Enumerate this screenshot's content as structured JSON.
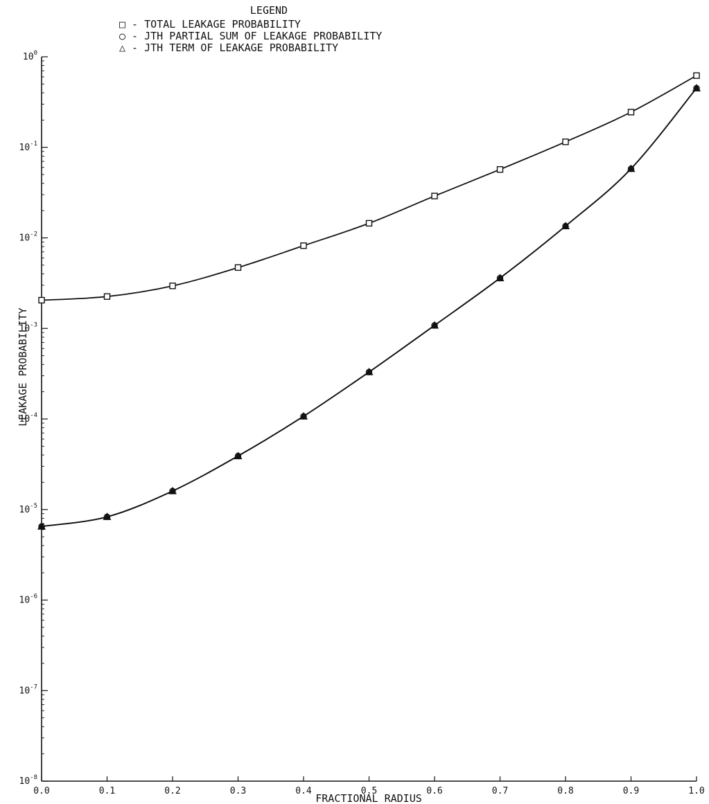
{
  "chart_data": {
    "type": "line",
    "legend": {
      "title": "LEGEND",
      "placement": "top-center",
      "entries": [
        {
          "marker": "□",
          "sep": "-",
          "label": "TOTAL LEAKAGE PROBABILITY"
        },
        {
          "marker": "○",
          "sep": "-",
          "label": "JTH PARTIAL SUM OF LEAKAGE PROBABILITY"
        },
        {
          "marker": "△",
          "sep": "-",
          "label": "JTH TERM OF LEAKAGE PROBABILITY"
        }
      ]
    },
    "xlabel": "FRACTIONAL RADIUS",
    "ylabel": "LEAKAGE PROBABILITY",
    "xlim": [
      0.0,
      1.0
    ],
    "ylim": [
      1e-08,
      1
    ],
    "yscale": "log",
    "grid": false,
    "x_ticks": [
      "0.0",
      "0.1",
      "0.2",
      "0.3",
      "0.4",
      "0.5",
      "0.6",
      "0.7",
      "0.8",
      "0.9",
      "1.0"
    ],
    "y_ticks": [
      {
        "base": "10",
        "exp": "0"
      },
      {
        "base": "10",
        "exp": "-1"
      },
      {
        "base": "10",
        "exp": "-2"
      },
      {
        "base": "10",
        "exp": "-3"
      },
      {
        "base": "10",
        "exp": "-4"
      },
      {
        "base": "10",
        "exp": "-5"
      },
      {
        "base": "10",
        "exp": "-6"
      },
      {
        "base": "10",
        "exp": "-7"
      },
      {
        "base": "10",
        "exp": "-8"
      }
    ],
    "x": [
      0.0,
      0.1,
      0.2,
      0.3,
      0.4,
      0.5,
      0.6,
      0.7,
      0.8,
      0.9,
      1.0
    ],
    "series": [
      {
        "name": "TOTAL LEAKAGE PROBABILITY",
        "marker": "square",
        "values": [
          0.00205,
          0.00225,
          0.00295,
          0.0047,
          0.0082,
          0.0145,
          0.029,
          0.057,
          0.115,
          0.245,
          0.62
        ]
      },
      {
        "name": "JTH PARTIAL SUM OF LEAKAGE PROBABILITY",
        "marker": "circle",
        "values": [
          6.5e-06,
          8.3e-06,
          1.6e-05,
          3.9e-05,
          0.000107,
          0.00033,
          0.00108,
          0.0036,
          0.0135,
          0.058,
          0.45
        ]
      },
      {
        "name": "JTH TERM OF LEAKAGE PROBABILITY",
        "marker": "triangle",
        "values": [
          6.5e-06,
          8.3e-06,
          1.6e-05,
          3.9e-05,
          0.000107,
          0.00033,
          0.00108,
          0.0036,
          0.0135,
          0.058,
          0.45
        ]
      }
    ],
    "line_color": "#111111"
  }
}
